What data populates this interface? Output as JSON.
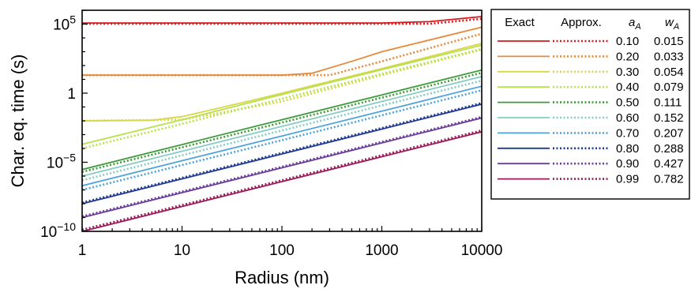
{
  "chart_data": {
    "type": "line",
    "xlabel": "Radius (nm)",
    "ylabel": "Char. eq. time (s)",
    "xscale": "log",
    "yscale": "log",
    "xlim": [
      1,
      10000
    ],
    "ylim": [
      1e-10,
      1000000.0
    ],
    "x_ticks": [
      {
        "value": 1,
        "label": "1"
      },
      {
        "value": 10,
        "label": "10"
      },
      {
        "value": 100,
        "label": "100"
      },
      {
        "value": 1000,
        "label": "1000"
      },
      {
        "value": 10000,
        "label": "10000"
      }
    ],
    "y_ticks": [
      {
        "value": 1e-10,
        "base": "10",
        "exp": "−10"
      },
      {
        "value": 1e-05,
        "base": "10",
        "exp": "−5"
      },
      {
        "value": 1,
        "base": "1",
        "exp": ""
      },
      {
        "value": 100000.0,
        "base": "10",
        "exp": "5"
      }
    ],
    "legend": {
      "placement": "outside-right",
      "headers": {
        "exact": "Exact",
        "approx": "Approx.",
        "a": "a",
        "a_sub": "A",
        "w": "w",
        "w_sub": "A"
      }
    },
    "series": [
      {
        "a": "0.10",
        "w": "0.015",
        "color": "#d7191c",
        "exact": [
          [
            1,
            120000.0
          ],
          [
            1000,
            120000.0
          ],
          [
            3000,
            150000.0
          ],
          [
            10000,
            350000.0
          ]
        ],
        "approx": [
          [
            1,
            105000.0
          ],
          [
            3000,
            105000.0
          ],
          [
            10000,
            240000.0
          ]
        ]
      },
      {
        "a": "0.20",
        "w": "0.033",
        "color": "#e8893a",
        "exact": [
          [
            1,
            20
          ],
          [
            100,
            20
          ],
          [
            200,
            28
          ],
          [
            500,
            200
          ],
          [
            1000,
            1000
          ],
          [
            10000,
            60000.0
          ]
        ],
        "approx": [
          [
            1,
            20
          ],
          [
            300,
            20
          ],
          [
            1000,
            200
          ],
          [
            10000,
            20000.0
          ]
        ]
      },
      {
        "a": "0.30",
        "w": "0.054",
        "color": "#d8d64a",
        "exact": [
          [
            1,
            0.01
          ],
          [
            5,
            0.011
          ],
          [
            10,
            0.02
          ],
          [
            50,
            0.3
          ],
          [
            100,
            1
          ],
          [
            1000,
            60
          ],
          [
            10000,
            4000
          ]
        ],
        "approx": [
          [
            1,
            0.01
          ],
          [
            10,
            0.012
          ],
          [
            100,
            0.25
          ],
          [
            1000,
            20
          ],
          [
            10000,
            1400
          ]
        ]
      },
      {
        "a": "0.40",
        "w": "0.079",
        "color": "#b7e24a",
        "exact": [
          [
            1,
            0.0002
          ],
          [
            10,
            0.012
          ],
          [
            100,
            0.8
          ],
          [
            1000,
            50
          ],
          [
            10000,
            3000
          ]
        ],
        "approx": [
          [
            1,
            0.0001
          ],
          [
            10,
            0.006
          ],
          [
            100,
            0.4
          ],
          [
            1000,
            25
          ],
          [
            10000,
            1600
          ]
        ]
      },
      {
        "a": "0.50",
        "w": "0.111",
        "color": "#3e9a3a",
        "exact": [
          [
            1,
            3e-06
          ],
          [
            10,
            0.00019
          ],
          [
            100,
            0.012
          ],
          [
            1000,
            0.75
          ],
          [
            10000,
            47
          ]
        ],
        "approx": [
          [
            1,
            2e-06
          ],
          [
            10,
            0.00012
          ],
          [
            100,
            0.0075
          ],
          [
            1000,
            0.47
          ],
          [
            10000,
            30
          ]
        ]
      },
      {
        "a": "0.60",
        "w": "0.152",
        "color": "#85cdc2",
        "exact": [
          [
            1,
            1e-06
          ],
          [
            10,
            6.3e-05
          ],
          [
            100,
            0.004
          ],
          [
            1000,
            0.25
          ],
          [
            10000,
            16
          ]
        ],
        "approx": [
          [
            1,
            5e-07
          ],
          [
            10,
            3.2e-05
          ],
          [
            100,
            0.002
          ],
          [
            1000,
            0.13
          ],
          [
            10000,
            8
          ]
        ]
      },
      {
        "a": "0.70",
        "w": "0.207",
        "color": "#4fa3dc",
        "exact": [
          [
            1,
            2e-07
          ],
          [
            10,
            1.3e-05
          ],
          [
            100,
            0.0008
          ],
          [
            1000,
            0.05
          ],
          [
            10000,
            3.2
          ]
        ],
        "approx": [
          [
            1,
            1e-07
          ],
          [
            10,
            6.3e-06
          ],
          [
            100,
            0.0004
          ],
          [
            1000,
            0.025
          ],
          [
            10000,
            1.6
          ]
        ]
      },
      {
        "a": "0.80",
        "w": "0.288",
        "color": "#1f3a93",
        "exact": [
          [
            1,
            1e-08
          ],
          [
            10,
            6.3e-07
          ],
          [
            100,
            4e-05
          ],
          [
            1000,
            0.0025
          ],
          [
            10000,
            0.16
          ]
        ],
        "approx": [
          [
            1,
            1.2e-08
          ],
          [
            10,
            7.5e-07
          ],
          [
            100,
            4.7e-05
          ],
          [
            1000,
            0.003
          ],
          [
            10000,
            0.19
          ]
        ]
      },
      {
        "a": "0.90",
        "w": "0.427",
        "color": "#6a3d9a",
        "exact": [
          [
            1,
            1e-09
          ],
          [
            10,
            6.3e-08
          ],
          [
            100,
            4e-06
          ],
          [
            1000,
            0.00025
          ],
          [
            10000,
            0.016
          ]
        ],
        "approx": [
          [
            1,
            1.2e-09
          ],
          [
            10,
            7.5e-08
          ],
          [
            100,
            4.7e-06
          ],
          [
            1000,
            0.0003
          ],
          [
            10000,
            0.019
          ]
        ]
      },
      {
        "a": "0.99",
        "w": "0.782",
        "color": "#9b1b5a",
        "exact": [
          [
            1,
            1e-10
          ],
          [
            10,
            6.3e-09
          ],
          [
            100,
            4e-07
          ],
          [
            1000,
            2.5e-05
          ],
          [
            10000,
            0.0016
          ]
        ],
        "approx": [
          [
            1,
            1.3e-10
          ],
          [
            10,
            8e-09
          ],
          [
            100,
            5e-07
          ],
          [
            1000,
            3.2e-05
          ],
          [
            10000,
            0.002
          ]
        ]
      }
    ]
  }
}
